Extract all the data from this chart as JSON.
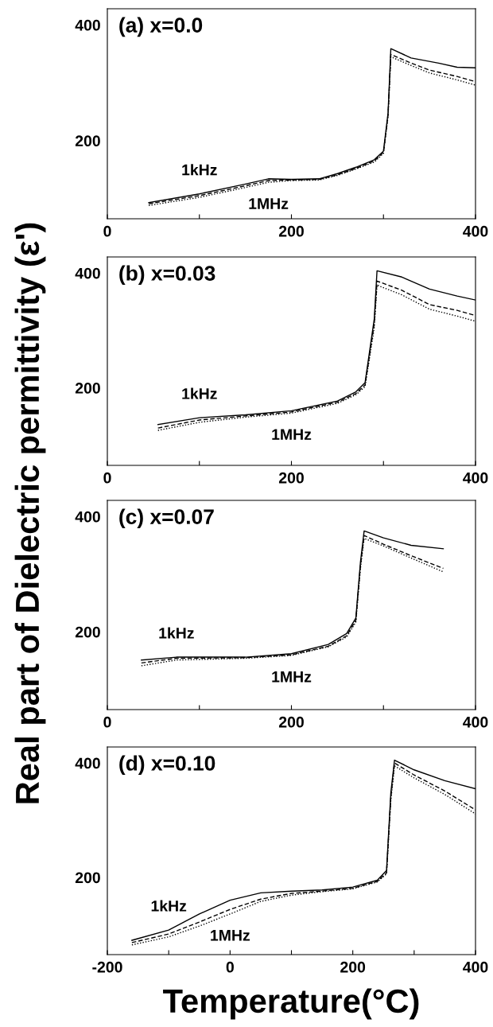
{
  "chart_data": [
    {
      "type": "line",
      "title": "(a) x=0.0",
      "ylabel": "Real part of Dielectric permittivity (ε')",
      "xlim": [
        0,
        400
      ],
      "ylim": [
        65,
        428
      ],
      "xticks": [
        0,
        {
          "value": 100,
          "label": null
        },
        200,
        {
          "value": 300,
          "label": null
        },
        400
      ],
      "yticks": [
        200,
        400
      ],
      "grid": false,
      "legend": false,
      "marker": "none",
      "series": [
        {
          "name": "1kHz",
          "color": "#000000",
          "line_style": "solid",
          "x": [
            45,
            100,
            150,
            175,
            200,
            230,
            250,
            270,
            290,
            300,
            305,
            308,
            330,
            360,
            380,
            400
          ],
          "values": [
            93,
            108,
            125,
            134,
            133,
            134,
            143,
            154,
            167,
            182,
            248,
            359,
            343,
            334,
            327,
            326
          ]
        },
        {
          "color": "#000000",
          "line_style": "dashed",
          "x": [
            45,
            100,
            150,
            175,
            200,
            230,
            250,
            270,
            290,
            300,
            305,
            308,
            330,
            350,
            380,
            400
          ],
          "values": [
            91,
            105,
            122,
            131,
            132,
            133,
            141,
            152,
            165,
            180,
            245,
            349,
            334,
            322,
            311,
            302
          ]
        },
        {
          "name": "1MHz",
          "color": "#000000",
          "line_style": "dotted",
          "x": [
            45,
            100,
            150,
            175,
            200,
            230,
            250,
            270,
            290,
            300,
            305,
            308,
            330,
            350,
            380,
            400
          ],
          "values": [
            88,
            102,
            119,
            128,
            131,
            132,
            140,
            151,
            163,
            178,
            242,
            345,
            330,
            317,
            305,
            296
          ]
        }
      ]
    },
    {
      "type": "line",
      "title": "(b) x=0.03",
      "xlim": [
        0,
        400
      ],
      "ylim": [
        65,
        428
      ],
      "xticks": [
        0,
        {
          "value": 100,
          "label": null
        },
        200,
        {
          "value": 300,
          "label": null
        },
        400
      ],
      "yticks": [
        200,
        400
      ],
      "grid": false,
      "legend": false,
      "marker": "none",
      "series": [
        {
          "name": "1kHz",
          "color": "#000000",
          "line_style": "solid",
          "x": [
            55,
            100,
            150,
            200,
            250,
            270,
            280,
            290,
            293,
            320,
            350,
            380,
            400
          ],
          "values": [
            136,
            148,
            153,
            160,
            177,
            193,
            209,
            320,
            404,
            393,
            372,
            360,
            353
          ]
        },
        {
          "color": "#000000",
          "line_style": "dashed",
          "x": [
            55,
            100,
            150,
            200,
            250,
            270,
            280,
            290,
            293,
            320,
            350,
            380,
            400
          ],
          "values": [
            130,
            144,
            151,
            158,
            175,
            190,
            205,
            312,
            386,
            370,
            345,
            335,
            326
          ]
        },
        {
          "name": "1MHz",
          "color": "#000000",
          "line_style": "dotted",
          "x": [
            55,
            100,
            150,
            200,
            250,
            270,
            280,
            290,
            293,
            320,
            350,
            380,
            400
          ],
          "values": [
            126,
            140,
            149,
            156,
            173,
            188,
            202,
            305,
            379,
            362,
            337,
            325,
            316
          ]
        }
      ]
    },
    {
      "type": "line",
      "title": "(c) x=0.07",
      "xlim": [
        0,
        400
      ],
      "ylim": [
        65,
        428
      ],
      "xticks": [
        0,
        {
          "value": 100,
          "label": null
        },
        200,
        {
          "value": 300,
          "label": null
        },
        400
      ],
      "yticks": [
        200,
        400
      ],
      "grid": false,
      "legend": false,
      "marker": "none",
      "series": [
        {
          "name": "1kHz",
          "color": "#000000",
          "line_style": "solid",
          "x": [
            37,
            75,
            150,
            200,
            240,
            260,
            270,
            275,
            279,
            300,
            330,
            365
          ],
          "values": [
            151,
            156,
            156,
            162,
            178,
            197,
            224,
            321,
            375,
            363,
            350,
            344
          ]
        },
        {
          "color": "#000000",
          "line_style": "dashed",
          "x": [
            37,
            75,
            150,
            200,
            240,
            260,
            270,
            275,
            279,
            300,
            330,
            365
          ],
          "values": [
            146,
            154,
            155,
            160,
            175,
            193,
            220,
            315,
            367,
            352,
            332,
            310
          ]
        },
        {
          "name": "1MHz",
          "color": "#000000",
          "line_style": "dotted",
          "x": [
            37,
            75,
            150,
            200,
            240,
            260,
            270,
            275,
            279,
            300,
            330,
            365
          ],
          "values": [
            141,
            151,
            154,
            159,
            174,
            191,
            217,
            310,
            362,
            349,
            328,
            304
          ]
        }
      ]
    },
    {
      "type": "line",
      "title": "(d) x=0.10",
      "xlabel": "Temperature(°C)",
      "xlim": [
        -200,
        400
      ],
      "ylim": [
        65,
        428
      ],
      "xticks": [
        -200,
        {
          "value": -100,
          "label": null
        },
        0,
        {
          "value": 100,
          "label": null
        },
        200,
        {
          "value": 300,
          "label": null
        },
        400
      ],
      "yticks": [
        200,
        400
      ],
      "grid": false,
      "legend": false,
      "marker": "none",
      "series": [
        {
          "name": "1kHz",
          "color": "#000000",
          "line_style": "solid",
          "x": [
            -160,
            -100,
            -50,
            0,
            50,
            100,
            150,
            200,
            240,
            255,
            262,
            268,
            300,
            350,
            400
          ],
          "values": [
            90,
            108,
            136,
            160,
            173,
            176,
            178,
            183,
            195,
            212,
            348,
            405,
            388,
            369,
            355
          ]
        },
        {
          "color": "#000000",
          "line_style": "dashed",
          "x": [
            -160,
            -100,
            -50,
            0,
            50,
            100,
            150,
            200,
            240,
            255,
            262,
            268,
            300,
            350,
            400
          ],
          "values": [
            86,
            101,
            122,
            144,
            162,
            172,
            176,
            181,
            193,
            208,
            340,
            400,
            379,
            351,
            318
          ]
        },
        {
          "name": "1MHz",
          "color": "#000000",
          "line_style": "dotted",
          "x": [
            -160,
            -100,
            -50,
            0,
            50,
            100,
            150,
            200,
            240,
            255,
            262,
            268,
            300,
            350,
            400
          ],
          "values": [
            82,
            96,
            115,
            136,
            158,
            169,
            175,
            180,
            192,
            206,
            335,
            395,
            374,
            345,
            311
          ]
        }
      ]
    }
  ]
}
